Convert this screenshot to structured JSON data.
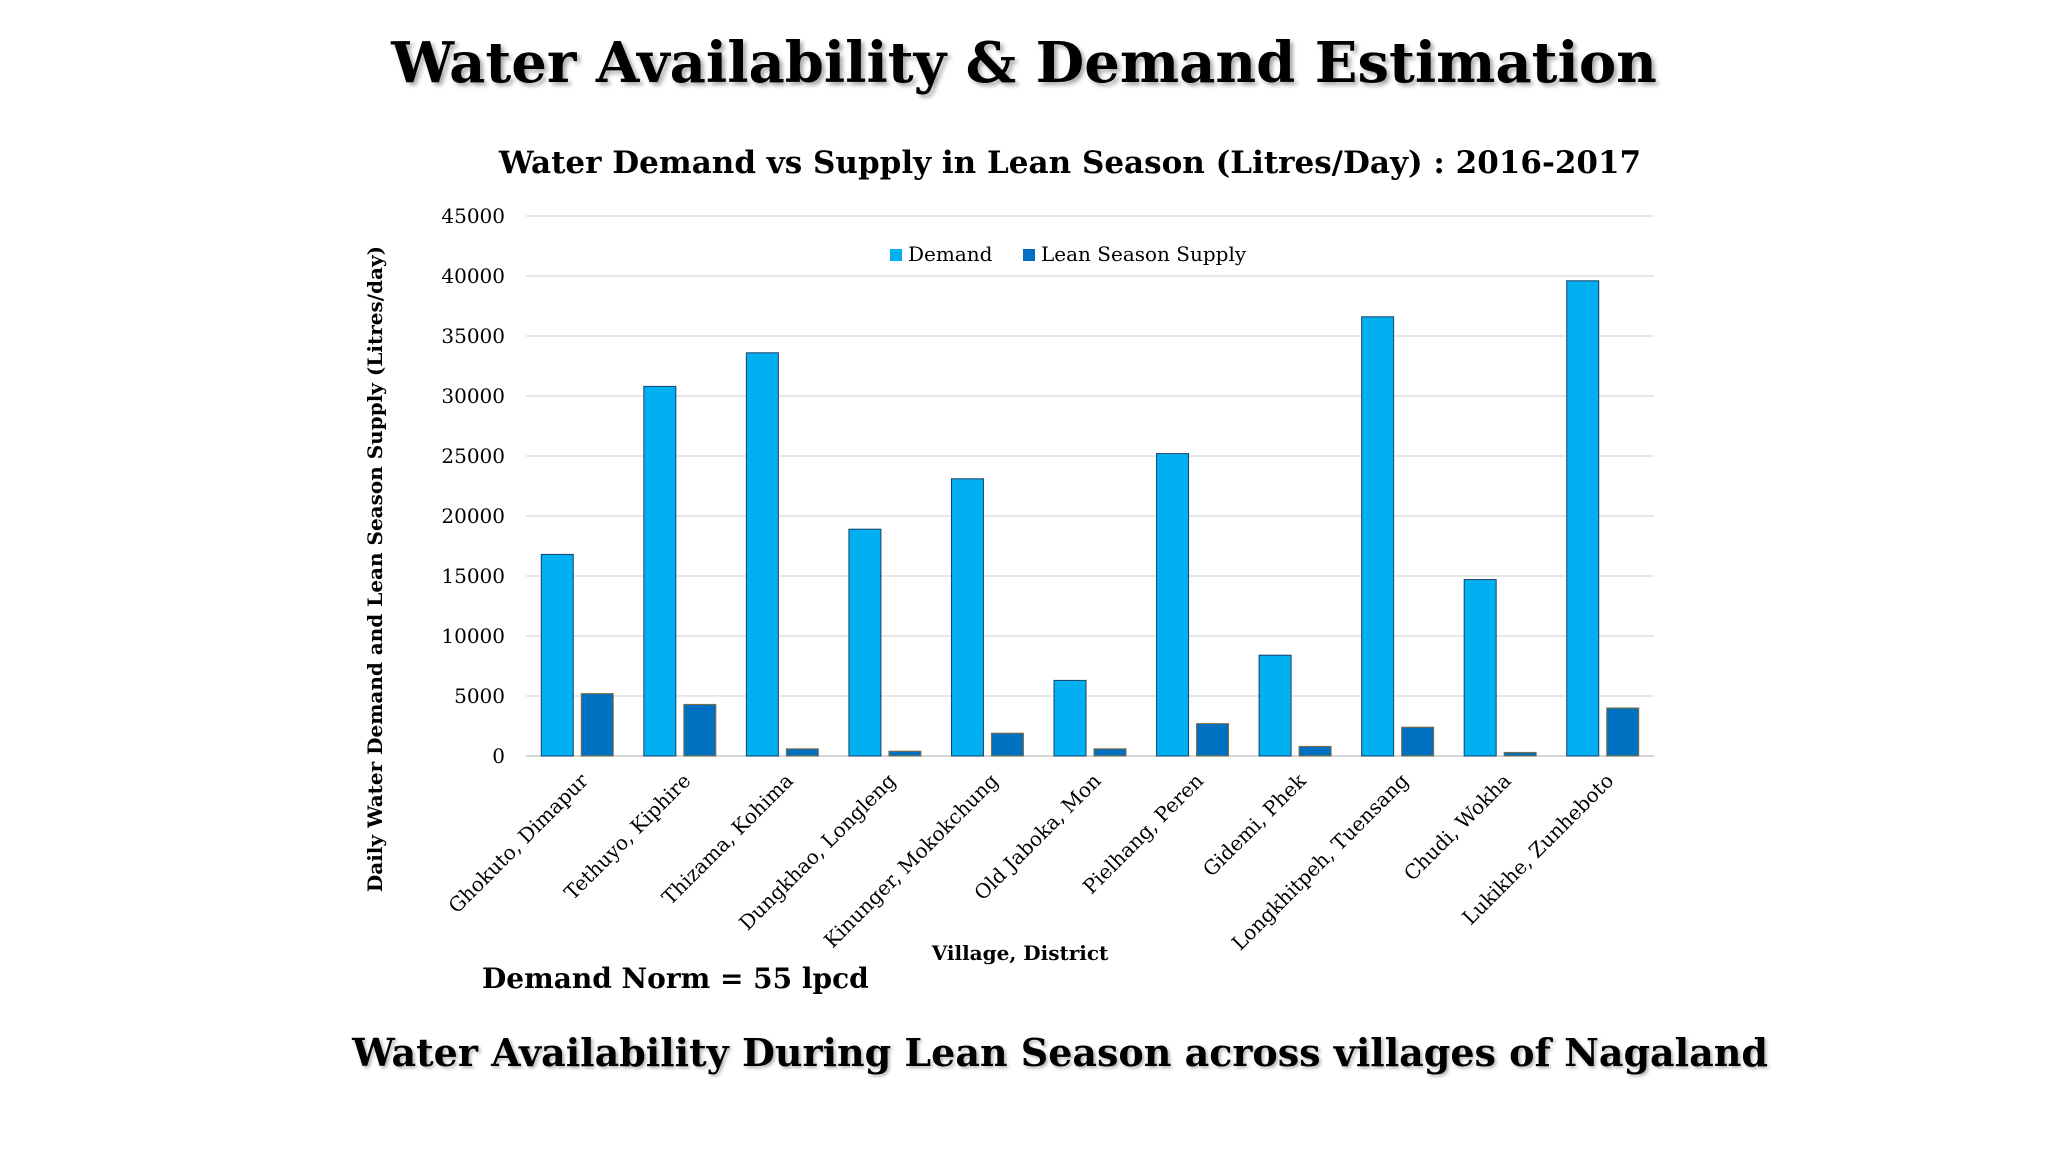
{
  "slide": {
    "title": "Water Availability & Demand Estimation",
    "note": "Demand Norm = 55 lpcd",
    "footer": "Water Availability During Lean Season across villages of Nagaland"
  },
  "chart_data": {
    "type": "bar",
    "title": "Water Demand vs Supply in Lean Season (Litres/Day) : 2016-2017",
    "xlabel": "Village, District",
    "ylabel": "Daily Water Demand and Lean Season Supply (Litres/day)",
    "ylim": [
      0,
      45000
    ],
    "yticks": [
      0,
      5000,
      10000,
      15000,
      20000,
      25000,
      30000,
      35000,
      40000,
      45000
    ],
    "grid": true,
    "legend_position": "top-center",
    "categories": [
      "Ghokuto, Dimapur",
      "Tethuyo, Kiphire",
      "Thizama, Kohima",
      "Dungkhao, Longleng",
      "Kinunger, Mokokchung",
      "Old Jaboka, Mon",
      "Pielhang, Peren",
      "Gidemi, Phek",
      "Longkhitpeh, Tuensang",
      "Chudi, Wokha",
      "Lukikhe, Zunheboto"
    ],
    "series": [
      {
        "name": "Demand",
        "color": "#00B0F0",
        "values": [
          16800,
          30800,
          33600,
          18900,
          23100,
          6300,
          25200,
          8400,
          36600,
          14700,
          39600
        ]
      },
      {
        "name": "Lean Season Supply",
        "color": "#0070C0",
        "values": [
          5200,
          4300,
          600,
          400,
          1900,
          600,
          2700,
          800,
          2400,
          300,
          4000
        ]
      }
    ]
  }
}
